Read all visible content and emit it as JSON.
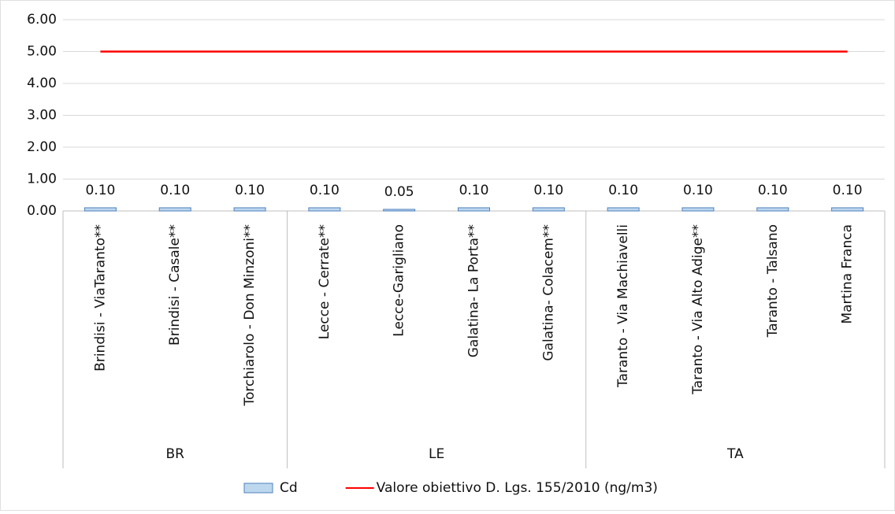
{
  "chart_data": {
    "type": "bar",
    "groups": [
      {
        "name": "BR",
        "categories": [
          "Brindisi - ViaTaranto**",
          "Brindisi - Casale**",
          "Torchiarolo - Don Minzoni**"
        ]
      },
      {
        "name": "LE",
        "categories": [
          "Lecce - Cerrate**",
          "Lecce-Garigliano",
          "Galatina- La Porta**",
          "Galatina- Colacem**"
        ]
      },
      {
        "name": "TA",
        "categories": [
          "Taranto - Via Machiavelli",
          "Taranto - Via Alto Adige**",
          "Taranto - Talsano",
          "Martina Franca"
        ]
      }
    ],
    "series": [
      {
        "name": "Cd",
        "type": "bar",
        "color": "#bdd7ee",
        "values": [
          0.1,
          0.1,
          0.1,
          0.1,
          0.05,
          0.1,
          0.1,
          0.1,
          0.1,
          0.1,
          0.1
        ],
        "value_labels": [
          "0.10",
          "0.10",
          "0.10",
          "0.10",
          "0.05",
          "0.10",
          "0.10",
          "0.10",
          "0.10",
          "0.10",
          "0.10"
        ]
      },
      {
        "name": "Valore obiettivo D. Lgs. 155/2010 (ng/m3)",
        "type": "line",
        "color": "#ff0000",
        "values": [
          5,
          5,
          5,
          5,
          5,
          5,
          5,
          5,
          5,
          5,
          5
        ]
      }
    ],
    "ylim": [
      0,
      6
    ],
    "yticks": [
      {
        "value": 0,
        "label": "0.00"
      },
      {
        "value": 1,
        "label": "1.00"
      },
      {
        "value": 2,
        "label": "2.00"
      },
      {
        "value": 3,
        "label": "3.00"
      },
      {
        "value": 4,
        "label": "4.00"
      },
      {
        "value": 5,
        "label": "5.00"
      },
      {
        "value": 6,
        "label": "6.00"
      }
    ],
    "grid": true,
    "legend": "bottom"
  }
}
